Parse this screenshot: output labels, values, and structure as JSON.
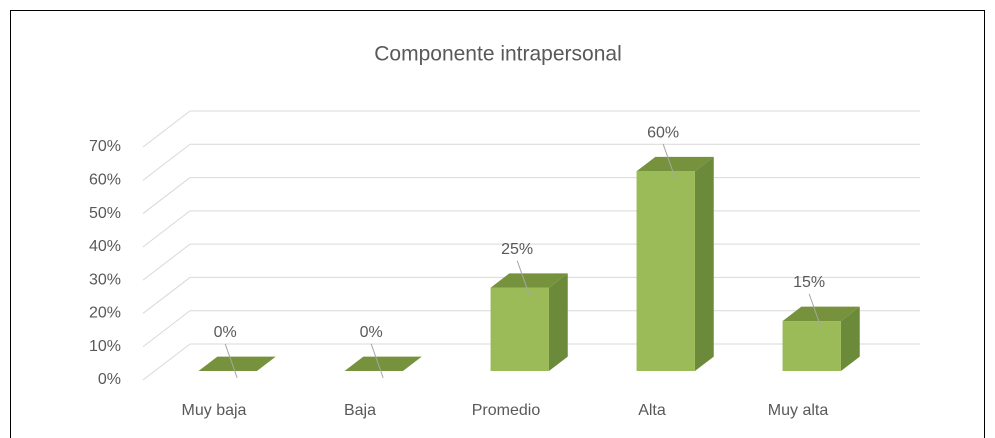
{
  "chart_data": {
    "type": "bar3d",
    "title": "Componente intrapersonal",
    "categories": [
      "Muy baja",
      "Baja",
      "Promedio",
      "Alta",
      "Muy alta"
    ],
    "values": [
      0,
      0,
      25,
      60,
      15
    ],
    "value_labels": [
      "0%",
      "0%",
      "25%",
      "60%",
      "15%"
    ],
    "color": "#9bbb59",
    "ylim": [
      0,
      70
    ],
    "yticks": [
      {
        "value": 0,
        "label": "0%"
      },
      {
        "value": 10,
        "label": "10%"
      },
      {
        "value": 20,
        "label": "20%"
      },
      {
        "value": 30,
        "label": "30%"
      },
      {
        "value": 40,
        "label": "40%"
      },
      {
        "value": 50,
        "label": "50%"
      },
      {
        "value": 60,
        "label": "60%"
      },
      {
        "value": 70,
        "label": "70%"
      }
    ],
    "grid": true
  }
}
